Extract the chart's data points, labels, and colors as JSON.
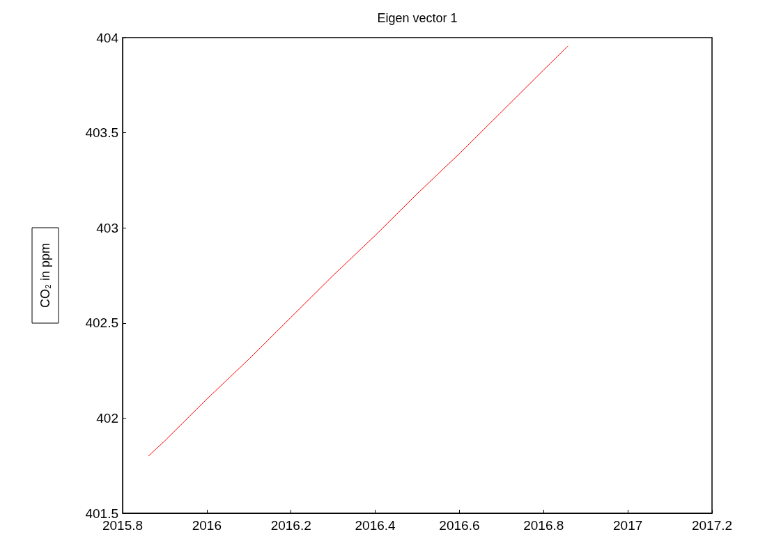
{
  "chart_data": {
    "type": "line",
    "title": "Eigen vector 1",
    "ylabel": "CO₂ in ppm",
    "x": [
      2015.861,
      2015.9,
      2016.0,
      2016.1,
      2016.2,
      2016.3,
      2016.4,
      2016.5,
      2016.6,
      2016.7,
      2016.8,
      2016.858
    ],
    "series": [
      {
        "color": "#ff0000",
        "values": [
          401.8,
          401.88,
          402.1,
          402.31,
          402.53,
          402.75,
          402.96,
          403.18,
          403.39,
          403.61,
          403.83,
          403.956
        ]
      }
    ],
    "xlim": [
      2015.8,
      2017.2
    ],
    "xticks": [
      2015.8,
      2016,
      2016.2,
      2016.4,
      2016.6,
      2016.8,
      2017,
      2017.2
    ],
    "ylim": [
      401.5,
      404
    ],
    "yticks": [
      401.5,
      402,
      402.5,
      403,
      403.5,
      404
    ],
    "grid": false,
    "marker": "none",
    "line_style": "solid"
  }
}
